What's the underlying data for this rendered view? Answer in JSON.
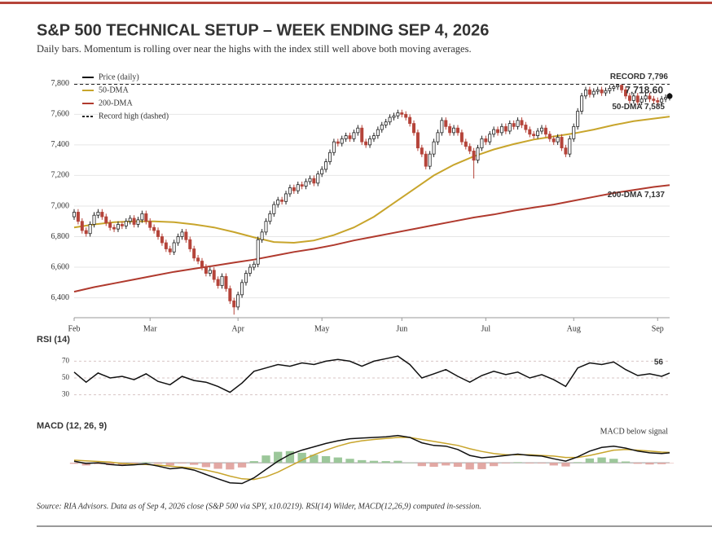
{
  "title": "S&P 500 TECHNICAL SETUP – WEEK ENDING SEP 4, 2026",
  "subtitle": "Daily bars. Momentum is rolling over near the highs with the index still well above both moving averages.",
  "source": "Source: RIA Advisors. Data as of Sep 4, 2026 close (S&P 500 via SPY, x10.0219). RSI(14) Wilder, MACD(12,26,9) computed in-session.",
  "chart_data": [
    {
      "type": "candlestick",
      "name": "Price (daily)",
      "up_color": "#ffffff",
      "down_color": "#b5443a",
      "edge_color": "#222222",
      "open": [
        6930,
        6960,
        6900,
        6840,
        6820,
        6880,
        6940,
        6960,
        6930,
        6890,
        6860,
        6850,
        6880,
        6870,
        6900,
        6920,
        6880,
        6910,
        6950,
        6900,
        6860,
        6840,
        6800,
        6760,
        6720,
        6700,
        6760,
        6800,
        6830,
        6780,
        6720,
        6660,
        6640,
        6600,
        6560,
        6580,
        6520,
        6480,
        6540,
        6460,
        6380,
        6340,
        6420,
        6500,
        6560,
        6600,
        6620,
        6780,
        6830,
        6900,
        6950,
        7010,
        7040,
        7030,
        7080,
        7120,
        7100,
        7140,
        7130,
        7160,
        7180,
        7150,
        7210,
        7240,
        7290,
        7350,
        7420,
        7410,
        7440,
        7460,
        7440,
        7480,
        7510,
        7420,
        7400,
        7440,
        7460,
        7500,
        7530,
        7550,
        7580,
        7590,
        7610,
        7600,
        7580,
        7540,
        7480,
        7380,
        7340,
        7260,
        7340,
        7420,
        7480,
        7560,
        7520,
        7480,
        7510,
        7480,
        7420,
        7390,
        7360,
        7300,
        7380,
        7440,
        7420,
        7470,
        7500,
        7480,
        7520,
        7490,
        7540,
        7520,
        7560,
        7530,
        7500,
        7470,
        7460,
        7490,
        7510,
        7470,
        7440,
        7420,
        7450,
        7380,
        7340,
        7440,
        7520,
        7620,
        7720,
        7760,
        7730,
        7750,
        7760,
        7740,
        7755,
        7770,
        7780,
        7790,
        7760,
        7720,
        7690,
        7720,
        7680,
        7700,
        7720,
        7700,
        7690,
        7680,
        7700,
        7710
      ],
      "high": [
        6980,
        6980,
        6920,
        6860,
        6900,
        6960,
        6980,
        6980,
        6950,
        6910,
        6880,
        6900,
        6900,
        6920,
        6940,
        6940,
        6930,
        6970,
        6970,
        6920,
        6880,
        6860,
        6820,
        6780,
        6740,
        6780,
        6820,
        6850,
        6850,
        6800,
        6740,
        6680,
        6660,
        6620,
        6600,
        6600,
        6540,
        6560,
        6560,
        6480,
        6400,
        6440,
        6520,
        6580,
        6620,
        6640,
        6800,
        6850,
        6920,
        6970,
        7030,
        7060,
        7060,
        7100,
        7140,
        7140,
        7160,
        7160,
        7180,
        7200,
        7200,
        7230,
        7260,
        7310,
        7370,
        7440,
        7440,
        7460,
        7480,
        7480,
        7500,
        7530,
        7530,
        7440,
        7460,
        7480,
        7520,
        7550,
        7570,
        7600,
        7610,
        7630,
        7630,
        7620,
        7600,
        7560,
        7500,
        7400,
        7360,
        7360,
        7440,
        7500,
        7580,
        7580,
        7540,
        7530,
        7530,
        7500,
        7440,
        7410,
        7380,
        7400,
        7460,
        7460,
        7490,
        7520,
        7520,
        7540,
        7540,
        7560,
        7560,
        7580,
        7580,
        7550,
        7520,
        7490,
        7510,
        7530,
        7530,
        7490,
        7460,
        7470,
        7470,
        7400,
        7460,
        7540,
        7640,
        7740,
        7780,
        7780,
        7770,
        7780,
        7780,
        7775,
        7790,
        7795,
        7796,
        7795,
        7780,
        7740,
        7740,
        7740,
        7720,
        7740,
        7740,
        7720,
        7710,
        7720,
        7730,
        7740
      ],
      "low": [
        6910,
        6880,
        6820,
        6800,
        6800,
        6860,
        6920,
        6910,
        6870,
        6840,
        6830,
        6830,
        6850,
        6850,
        6880,
        6860,
        6860,
        6890,
        6880,
        6840,
        6820,
        6780,
        6740,
        6700,
        6680,
        6680,
        6740,
        6780,
        6760,
        6700,
        6640,
        6620,
        6580,
        6540,
        6540,
        6500,
        6460,
        6460,
        6440,
        6360,
        6290,
        6320,
        6400,
        6480,
        6540,
        6580,
        6600,
        6760,
        6810,
        6880,
        6930,
        6990,
        7010,
        7010,
        7060,
        7080,
        7080,
        7110,
        7110,
        7140,
        7130,
        7130,
        7190,
        7220,
        7270,
        7330,
        7390,
        7390,
        7420,
        7420,
        7420,
        7460,
        7400,
        7380,
        7380,
        7420,
        7440,
        7480,
        7510,
        7530,
        7560,
        7570,
        7580,
        7560,
        7520,
        7460,
        7360,
        7320,
        7240,
        7240,
        7320,
        7400,
        7460,
        7500,
        7460,
        7460,
        7460,
        7400,
        7370,
        7340,
        7180,
        7280,
        7360,
        7400,
        7400,
        7450,
        7460,
        7460,
        7470,
        7470,
        7500,
        7500,
        7510,
        7480,
        7450,
        7440,
        7440,
        7470,
        7450,
        7420,
        7400,
        7400,
        7360,
        7320,
        7320,
        7420,
        7500,
        7600,
        7700,
        7710,
        7710,
        7730,
        7720,
        7720,
        7735,
        7750,
        7760,
        7740,
        7700,
        7670,
        7670,
        7660,
        7660,
        7680,
        7680,
        7670,
        7660,
        7660,
        7680,
        7690
      ],
      "close": [
        6960,
        6900,
        6840,
        6820,
        6880,
        6940,
        6960,
        6930,
        6890,
        6860,
        6850,
        6880,
        6870,
        6900,
        6920,
        6880,
        6910,
        6950,
        6900,
        6860,
        6840,
        6800,
        6760,
        6720,
        6700,
        6760,
        6800,
        6830,
        6780,
        6720,
        6660,
        6640,
        6600,
        6560,
        6580,
        6520,
        6480,
        6540,
        6460,
        6380,
        6340,
        6420,
        6500,
        6560,
        6600,
        6620,
        6780,
        6830,
        6900,
        6950,
        7010,
        7040,
        7030,
        7080,
        7120,
        7100,
        7140,
        7130,
        7160,
        7180,
        7150,
        7210,
        7240,
        7290,
        7350,
        7420,
        7410,
        7440,
        7460,
        7440,
        7480,
        7510,
        7420,
        7400,
        7440,
        7460,
        7500,
        7530,
        7550,
        7580,
        7590,
        7610,
        7600,
        7580,
        7540,
        7480,
        7380,
        7340,
        7260,
        7340,
        7420,
        7480,
        7560,
        7520,
        7480,
        7510,
        7480,
        7420,
        7390,
        7360,
        7300,
        7380,
        7440,
        7420,
        7470,
        7500,
        7480,
        7520,
        7490,
        7540,
        7520,
        7560,
        7530,
        7500,
        7470,
        7460,
        7490,
        7510,
        7470,
        7440,
        7420,
        7450,
        7380,
        7340,
        7440,
        7520,
        7620,
        7720,
        7760,
        7730,
        7750,
        7760,
        7740,
        7755,
        7770,
        7780,
        7790,
        7760,
        7720,
        7690,
        7720,
        7680,
        7700,
        7720,
        7700,
        7690,
        7680,
        7700,
        7710,
        7718.6
      ],
      "xlim": [
        0,
        149
      ],
      "xticks": [
        {
          "value": 0,
          "label": "Feb"
        },
        {
          "value": 19,
          "label": "Mar"
        },
        {
          "value": 41,
          "label": "Apr"
        },
        {
          "value": 62,
          "label": "May"
        },
        {
          "value": 82,
          "label": "Jun"
        },
        {
          "value": 103,
          "label": "Jul"
        },
        {
          "value": 125,
          "label": "Aug"
        },
        {
          "value": 146,
          "label": "Sep"
        }
      ],
      "ylim": [
        6270,
        7900
      ],
      "yticks": [
        {
          "value": 6400,
          "label": "6,400"
        },
        {
          "value": 6600,
          "label": "6,600"
        },
        {
          "value": 6800,
          "label": "6,800"
        },
        {
          "value": 7000,
          "label": "7,000"
        },
        {
          "value": 7200,
          "label": "7,200"
        },
        {
          "value": 7400,
          "label": "7,400"
        },
        {
          "value": 7600,
          "label": "7,600"
        },
        {
          "value": 7800,
          "label": "7,800"
        }
      ],
      "grid": true,
      "legend": "upper left",
      "series": [
        {
          "name": "50-DMA",
          "color": "#c8a52c",
          "end_label": "50-DMA 7,585",
          "x": [
            0,
            5,
            10,
            15,
            20,
            25,
            30,
            35,
            40,
            45,
            50,
            55,
            60,
            65,
            70,
            75,
            80,
            85,
            90,
            95,
            100,
            105,
            110,
            115,
            120,
            125,
            130,
            135,
            140,
            145,
            149
          ],
          "values": [
            6860,
            6880,
            6895,
            6900,
            6900,
            6895,
            6880,
            6860,
            6830,
            6795,
            6765,
            6760,
            6775,
            6810,
            6860,
            6930,
            7020,
            7110,
            7200,
            7270,
            7325,
            7370,
            7405,
            7435,
            7455,
            7475,
            7500,
            7530,
            7555,
            7572,
            7585
          ]
        },
        {
          "name": "200-DMA",
          "color": "#b03a2e",
          "end_label": "200-DMA 7,137",
          "x": [
            0,
            5,
            10,
            15,
            20,
            25,
            30,
            35,
            40,
            45,
            50,
            55,
            60,
            65,
            70,
            75,
            80,
            85,
            90,
            95,
            100,
            105,
            110,
            115,
            120,
            125,
            130,
            135,
            140,
            145,
            149
          ],
          "values": [
            6440,
            6470,
            6495,
            6520,
            6545,
            6570,
            6590,
            6610,
            6630,
            6650,
            6675,
            6700,
            6720,
            6745,
            6775,
            6800,
            6825,
            6850,
            6875,
            6900,
            6925,
            6945,
            6970,
            6990,
            7010,
            7035,
            7060,
            7085,
            7105,
            7125,
            7137
          ]
        }
      ],
      "record": {
        "name": "Record high (dashed)",
        "value": 7796,
        "label": "RECORD 7,796"
      },
      "last_price": {
        "value": 7718.6,
        "label": "7,718.60"
      }
    },
    {
      "type": "line",
      "title": "RSI (14)",
      "xlim": [
        0,
        149
      ],
      "ylim": [
        20,
        83
      ],
      "yticks": [
        30,
        50,
        70
      ],
      "x": [
        0,
        3,
        6,
        9,
        12,
        15,
        18,
        21,
        24,
        27,
        30,
        33,
        36,
        39,
        42,
        45,
        48,
        51,
        54,
        57,
        60,
        63,
        66,
        69,
        72,
        75,
        78,
        81,
        84,
        87,
        90,
        93,
        96,
        99,
        102,
        105,
        108,
        111,
        114,
        117,
        120,
        123,
        126,
        129,
        132,
        135,
        138,
        141,
        144,
        147,
        149
      ],
      "series": [
        {
          "color": "#111111",
          "values": [
            57,
            45,
            56,
            50,
            52,
            48,
            55,
            46,
            42,
            52,
            47,
            45,
            40,
            33,
            44,
            58,
            62,
            66,
            64,
            68,
            66,
            70,
            72,
            70,
            64,
            70,
            73,
            76,
            66,
            50,
            55,
            60,
            52,
            45,
            53,
            58,
            54,
            57,
            50,
            54,
            48,
            40,
            62,
            68,
            66,
            69,
            60,
            53,
            55,
            52,
            56
          ]
        }
      ]
    },
    {
      "type": "macd",
      "title": "MACD (12, 26, 9)",
      "annotation": "MACD below signal",
      "xlim": [
        0,
        149
      ],
      "ylim": [
        -90,
        98
      ],
      "x": [
        0,
        3,
        6,
        9,
        12,
        15,
        18,
        21,
        24,
        27,
        30,
        33,
        36,
        39,
        42,
        45,
        48,
        51,
        54,
        57,
        60,
        63,
        66,
        69,
        72,
        75,
        78,
        81,
        84,
        87,
        90,
        93,
        96,
        99,
        102,
        105,
        108,
        111,
        114,
        117,
        120,
        123,
        126,
        129,
        132,
        135,
        138,
        141,
        144,
        147,
        149
      ],
      "macd": {
        "color": "#111111",
        "values": [
          5,
          -2,
          0,
          -5,
          -8,
          -6,
          -3,
          -10,
          -18,
          -15,
          -22,
          -35,
          -48,
          -60,
          -62,
          -45,
          -20,
          5,
          25,
          38,
          48,
          58,
          66,
          72,
          74,
          76,
          78,
          82,
          76,
          60,
          52,
          50,
          40,
          22,
          15,
          18,
          22,
          26,
          22,
          20,
          12,
          5,
          18,
          35,
          46,
          50,
          44,
          35,
          30,
          28,
          30
        ]
      },
      "signal": {
        "color": "#c8a52c",
        "values": [
          8,
          6,
          4,
          2,
          -2,
          -4,
          -5,
          -7,
          -10,
          -13,
          -16,
          -22,
          -30,
          -40,
          -48,
          -50,
          -42,
          -28,
          -10,
          8,
          24,
          38,
          50,
          60,
          66,
          70,
          73,
          76,
          76,
          70,
          64,
          58,
          52,
          42,
          34,
          28,
          24,
          24,
          24,
          22,
          20,
          16,
          16,
          22,
          30,
          38,
          40,
          38,
          35,
          32,
          31
        ]
      },
      "histogram": {
        "up_color": "#9cc79a",
        "down_color": "#e2a8a4",
        "values": [
          -3,
          -8,
          -4,
          -7,
          -6,
          -2,
          2,
          -3,
          -8,
          -2,
          -6,
          -13,
          -18,
          -20,
          -14,
          5,
          22,
          33,
          35,
          30,
          24,
          20,
          16,
          12,
          8,
          6,
          5,
          6,
          0,
          -10,
          -12,
          -8,
          -12,
          -20,
          -19,
          -10,
          -2,
          2,
          -2,
          -2,
          -8,
          -11,
          2,
          13,
          16,
          12,
          4,
          -3,
          -5,
          -4,
          -1
        ]
      }
    }
  ]
}
